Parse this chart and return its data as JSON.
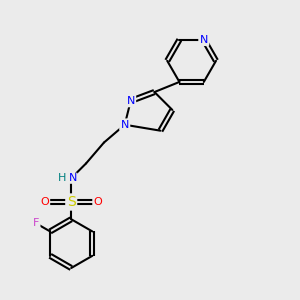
{
  "background_color": "#ebebeb",
  "bond_color": "#000000",
  "atom_colors": {
    "N": "#0000ff",
    "F": "#cc44cc",
    "S": "#cccc00",
    "O": "#ff0000",
    "H": "#008080",
    "C": "#000000"
  },
  "figsize": [
    3.0,
    3.0
  ],
  "dpi": 100
}
